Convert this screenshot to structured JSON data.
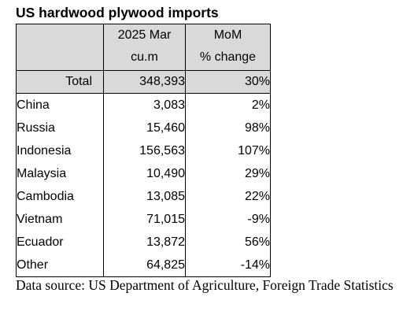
{
  "title": "US hardwood plywood imports",
  "header": {
    "col2_line1": "2025 Mar",
    "col2_line2": "cu.m",
    "col3_line1": "MoM",
    "col3_line2": "% change"
  },
  "chart_data": {
    "type": "table",
    "title": "US hardwood plywood imports",
    "columns": [
      "",
      "2025 Mar cu.m",
      "MoM % change"
    ],
    "total": {
      "label": "Total",
      "volume": "348,393",
      "change": "30%"
    },
    "rows": [
      {
        "label": "China",
        "volume": "3,083",
        "change": "2%"
      },
      {
        "label": "Russia",
        "volume": "15,460",
        "change": "98%"
      },
      {
        "label": "Indonesia",
        "volume": "156,563",
        "change": "107%"
      },
      {
        "label": "Malaysia",
        "volume": "10,490",
        "change": "29%"
      },
      {
        "label": "Cambodia",
        "volume": "13,085",
        "change": "22%"
      },
      {
        "label": "Vietnam",
        "volume": "71,015",
        "change": "-9%"
      },
      {
        "label": "Ecuador",
        "volume": "13,872",
        "change": "56%"
      },
      {
        "label": "Other",
        "volume": "64,825",
        "change": "-14%"
      }
    ]
  },
  "source": "Data source: US Department of Agriculture, Foreign Trade Statistics",
  "colors": {
    "header_fill": "#d9d9d9",
    "border": "#000000",
    "text": "#000000"
  }
}
